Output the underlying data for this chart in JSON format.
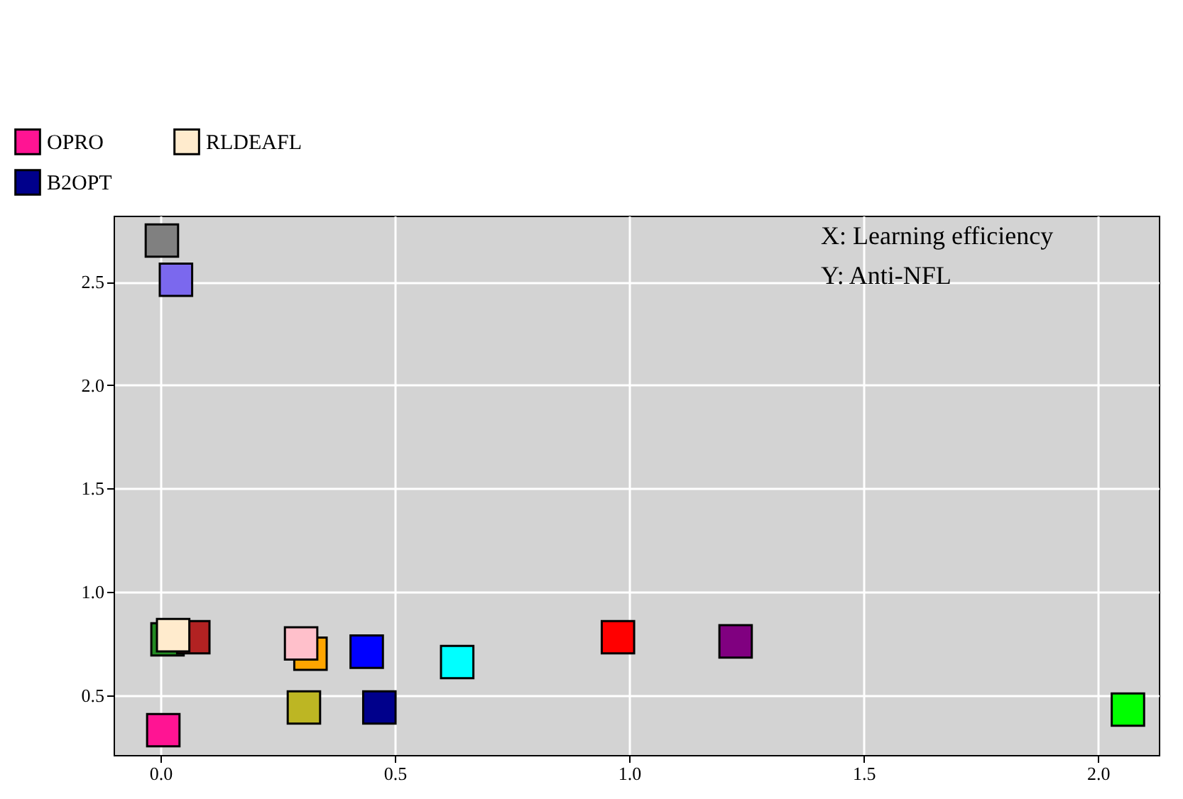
{
  "chart_data": {
    "type": "scatter",
    "marker": "square",
    "grid": true,
    "legend": "top left",
    "xlim": [
      -0.1,
      2.13
    ],
    "ylim": [
      0.21,
      2.82
    ],
    "xticks": [
      {
        "value": 0,
        "label": "0.0"
      },
      0.5,
      {
        "value": 1,
        "label": "1.0"
      },
      1.5,
      {
        "value": 2,
        "label": "2.0"
      }
    ],
    "yticks": [
      0.5,
      {
        "value": 1,
        "label": "1.0"
      },
      1.5,
      {
        "value": 2,
        "label": "2.0"
      },
      2.5
    ],
    "annotations": [
      "X: Learning efficiency",
      "Y: Anti-NFL"
    ],
    "series": [
      {
        "color": "#808080",
        "x": [
          0.003
        ],
        "values": [
          2.7
        ]
      },
      {
        "color": "#7b68ee",
        "x": [
          0.033
        ],
        "values": [
          2.51
        ]
      },
      {
        "color": "#228b22",
        "x": [
          0.015
        ],
        "values": [
          0.77
        ]
      },
      {
        "color": "#b22222",
        "x": [
          0.07
        ],
        "values": [
          0.78
        ]
      },
      {
        "name": "OPRO",
        "color": "#ff1493",
        "x": [
          0.006
        ],
        "values": [
          0.33
        ]
      },
      {
        "name": "RLDEAFL",
        "color": "#ffebcd",
        "x": [
          0.027
        ],
        "values": [
          0.79
        ]
      },
      {
        "color": "#ffa500",
        "x": [
          0.32
        ],
        "values": [
          0.7
        ]
      },
      {
        "color": "#ffc0cb",
        "x": [
          0.3
        ],
        "values": [
          0.75
        ]
      },
      {
        "color": "#bdb623",
        "x": [
          0.306
        ],
        "values": [
          0.44
        ]
      },
      {
        "color": "#0000ff",
        "x": [
          0.44
        ],
        "values": [
          0.71
        ]
      },
      {
        "name": "B2OPT",
        "color": "#00008b",
        "x": [
          0.467
        ],
        "values": [
          0.44
        ]
      },
      {
        "color": "#00ffff",
        "x": [
          0.633
        ],
        "values": [
          0.66
        ]
      },
      {
        "color": "#ff0000",
        "x": [
          0.976
        ],
        "values": [
          0.78
        ]
      },
      {
        "color": "#800080",
        "x": [
          1.227
        ],
        "values": [
          0.76
        ]
      },
      {
        "color": "#00ff00",
        "x": [
          2.064
        ],
        "values": [
          0.43
        ]
      }
    ]
  }
}
